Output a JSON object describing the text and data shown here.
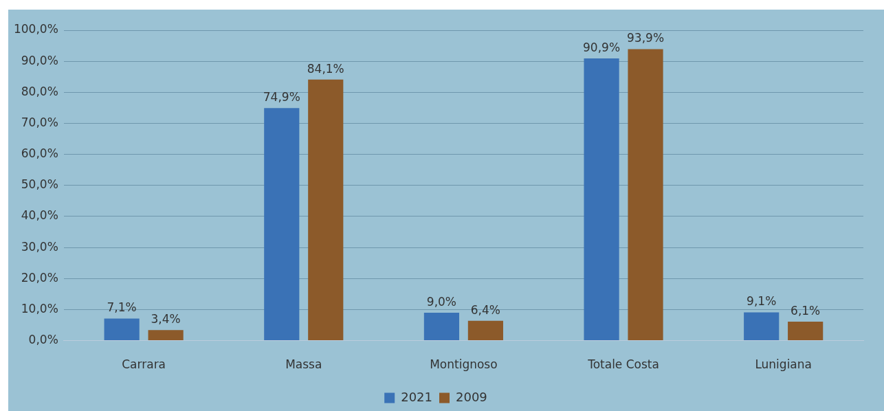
{
  "chart_data": {
    "type": "bar",
    "categories": [
      "Carrara",
      "Massa",
      "Montignoso",
      "Totale Costa",
      "Lunigiana"
    ],
    "series": [
      {
        "name": "2021",
        "color": "#3a72b6",
        "values": [
          7.1,
          74.9,
          9.0,
          90.9,
          9.1
        ],
        "value_labels": [
          "7,1%",
          "74,9%",
          "9,0%",
          "90,9%",
          "9,1%"
        ]
      },
      {
        "name": "2009",
        "color": "#8c5a2a",
        "values": [
          3.4,
          84.1,
          6.4,
          93.9,
          6.1
        ],
        "value_labels": [
          "3,4%",
          "84,1%",
          "6,4%",
          "93,9%",
          "6,1%"
        ]
      }
    ],
    "ylim": [
      0,
      100
    ],
    "yticks": [
      {
        "value": 0,
        "label": "0,0%"
      },
      {
        "value": 10,
        "label": "10,0%"
      },
      {
        "value": 20,
        "label": "20,0%"
      },
      {
        "value": 30,
        "label": "30,0%"
      },
      {
        "value": 40,
        "label": "40,0%"
      },
      {
        "value": 50,
        "label": "50,0%"
      },
      {
        "value": 60,
        "label": "60,0%"
      },
      {
        "value": 70,
        "label": "70,0%"
      },
      {
        "value": 80,
        "label": "80,0%"
      },
      {
        "value": 90,
        "label": "90,0%"
      },
      {
        "value": 100,
        "label": "100,0%"
      }
    ],
    "grid": "y",
    "legend": "bottom"
  }
}
